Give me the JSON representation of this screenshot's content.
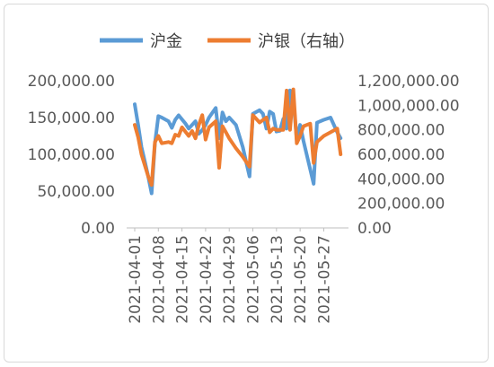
{
  "chart_data": {
    "type": "line",
    "legend": {
      "position": "top",
      "items": [
        {
          "label": "沪金",
          "color": "#5B9BD5"
        },
        {
          "label": "沪银（右轴）",
          "color": "#ED7D31"
        }
      ]
    },
    "grid": false,
    "y_left": {
      "range": [
        0,
        200000
      ],
      "ticks": [
        0,
        50000,
        100000,
        150000,
        200000
      ],
      "tick_labels": [
        "0.00",
        "50,000.00",
        "100,000.00",
        "150,000.00",
        "200,000.00"
      ]
    },
    "y_right": {
      "range": [
        0,
        1200000
      ],
      "ticks": [
        0,
        200000,
        400000,
        600000,
        800000,
        1000000,
        1200000
      ],
      "tick_labels": [
        "0.00",
        "200,000.00",
        "400,000.00",
        "600,000.00",
        "800,000.00",
        "1,000,000.00",
        "1,200,000.00"
      ]
    },
    "x": {
      "start": "2021-04-01",
      "end": "2021-06-02",
      "tick_labels": [
        "2021-04-01",
        "2021-04-08",
        "2021-04-15",
        "2021-04-22",
        "2021-04-29",
        "2021-05-06",
        "2021-05-13",
        "2021-05-20",
        "2021-05-27"
      ]
    },
    "series": [
      {
        "name": "沪金",
        "axis": "left",
        "color": "#5B9BD5",
        "points": [
          [
            "2021-04-01",
            168000
          ],
          [
            "2021-04-02",
            140000
          ],
          [
            "2021-04-03",
            110000
          ],
          [
            "2021-04-04",
            90000
          ],
          [
            "2021-04-05",
            70000
          ],
          [
            "2021-04-06",
            47000
          ],
          [
            "2021-04-07",
            115000
          ],
          [
            "2021-04-08",
            152000
          ],
          [
            "2021-04-09",
            150000
          ],
          [
            "2021-04-11",
            145000
          ],
          [
            "2021-04-12",
            136000
          ],
          [
            "2021-04-13",
            147000
          ],
          [
            "2021-04-14",
            153000
          ],
          [
            "2021-04-16",
            142000
          ],
          [
            "2021-04-17",
            135000
          ],
          [
            "2021-04-19",
            145000
          ],
          [
            "2021-04-20",
            128000
          ],
          [
            "2021-04-21",
            133000
          ],
          [
            "2021-04-22",
            140000
          ],
          [
            "2021-04-23",
            150000
          ],
          [
            "2021-04-25",
            163000
          ],
          [
            "2021-04-26",
            122000
          ],
          [
            "2021-04-27",
            157000
          ],
          [
            "2021-04-28",
            145000
          ],
          [
            "2021-04-29",
            150000
          ],
          [
            "2021-05-01",
            140000
          ],
          [
            "2021-05-03",
            110000
          ],
          [
            "2021-05-04",
            90000
          ],
          [
            "2021-05-05",
            70000
          ],
          [
            "2021-05-06",
            155000
          ],
          [
            "2021-05-08",
            160000
          ],
          [
            "2021-05-09",
            155000
          ],
          [
            "2021-05-10",
            135000
          ],
          [
            "2021-05-11",
            158000
          ],
          [
            "2021-05-12",
            155000
          ],
          [
            "2021-05-13",
            131000
          ],
          [
            "2021-05-14",
            132000
          ],
          [
            "2021-05-15",
            148000
          ],
          [
            "2021-05-16",
            135000
          ],
          [
            "2021-05-17",
            187000
          ],
          [
            "2021-05-18",
            175000
          ],
          [
            "2021-05-19",
            120000
          ],
          [
            "2021-05-20",
            140000
          ],
          [
            "2021-05-21",
            118000
          ],
          [
            "2021-05-24",
            60000
          ],
          [
            "2021-05-25",
            143000
          ],
          [
            "2021-05-27",
            147000
          ],
          [
            "2021-05-29",
            150000
          ],
          [
            "2021-05-31",
            130000
          ],
          [
            "2021-06-01",
            122000
          ]
        ]
      },
      {
        "name": "沪银（右轴）",
        "axis": "right",
        "color": "#ED7D31",
        "points": [
          [
            "2021-04-01",
            840000
          ],
          [
            "2021-04-02",
            740000
          ],
          [
            "2021-04-03",
            600000
          ],
          [
            "2021-04-05",
            420000
          ],
          [
            "2021-04-06",
            350000
          ],
          [
            "2021-04-07",
            700000
          ],
          [
            "2021-04-08",
            750000
          ],
          [
            "2021-04-09",
            690000
          ],
          [
            "2021-04-11",
            700000
          ],
          [
            "2021-04-12",
            690000
          ],
          [
            "2021-04-13",
            760000
          ],
          [
            "2021-04-14",
            750000
          ],
          [
            "2021-04-15",
            820000
          ],
          [
            "2021-04-17",
            750000
          ],
          [
            "2021-04-18",
            790000
          ],
          [
            "2021-04-19",
            730000
          ],
          [
            "2021-04-20",
            840000
          ],
          [
            "2021-04-21",
            920000
          ],
          [
            "2021-04-22",
            720000
          ],
          [
            "2021-04-23",
            820000
          ],
          [
            "2021-04-25",
            870000
          ],
          [
            "2021-04-26",
            490000
          ],
          [
            "2021-04-27",
            830000
          ],
          [
            "2021-04-28",
            780000
          ],
          [
            "2021-04-29",
            730000
          ],
          [
            "2021-05-01",
            650000
          ],
          [
            "2021-05-03",
            580000
          ],
          [
            "2021-05-05",
            500000
          ],
          [
            "2021-05-06",
            920000
          ],
          [
            "2021-05-08",
            860000
          ],
          [
            "2021-05-09",
            880000
          ],
          [
            "2021-05-10",
            900000
          ],
          [
            "2021-05-11",
            780000
          ],
          [
            "2021-05-12",
            810000
          ],
          [
            "2021-05-13",
            800000
          ],
          [
            "2021-05-14",
            800000
          ],
          [
            "2021-05-15",
            800000
          ],
          [
            "2021-05-16",
            1120000
          ],
          [
            "2021-05-17",
            800000
          ],
          [
            "2021-05-18",
            1130000
          ],
          [
            "2021-05-19",
            690000
          ],
          [
            "2021-05-20",
            750000
          ],
          [
            "2021-05-21",
            830000
          ],
          [
            "2021-05-23",
            850000
          ],
          [
            "2021-05-24",
            530000
          ],
          [
            "2021-05-25",
            700000
          ],
          [
            "2021-05-27",
            750000
          ],
          [
            "2021-05-29",
            780000
          ],
          [
            "2021-05-31",
            810000
          ],
          [
            "2021-06-01",
            600000
          ]
        ]
      }
    ]
  }
}
